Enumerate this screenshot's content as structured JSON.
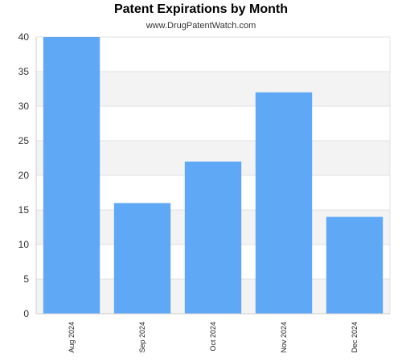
{
  "chart_data": {
    "type": "bar",
    "title": "Patent Expirations by Month",
    "subtitle": "www.DrugPatentWatch.com",
    "xlabel": "",
    "ylabel": "",
    "categories": [
      "Aug 2024",
      "Sep 2024",
      "Oct 2024",
      "Nov 2024",
      "Dec 2024"
    ],
    "values": [
      40,
      16,
      22,
      32,
      14
    ],
    "ylim": [
      0,
      40
    ],
    "yticks": [
      0,
      5,
      10,
      15,
      20,
      25,
      30,
      35,
      40
    ],
    "grid": true,
    "legend": "none",
    "colors": {
      "bar": "#5fa8f5",
      "band": "#f3f3f3",
      "grid": "#e2e2e2",
      "axis": "#cccccc"
    }
  }
}
